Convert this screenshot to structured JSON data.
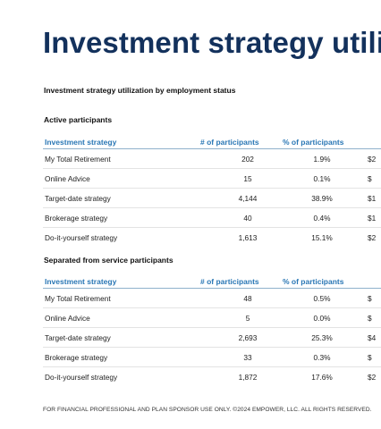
{
  "title": "Investment strategy utiliz",
  "subtitle": "Investment strategy utilization by employment status",
  "headers": {
    "strategy": "Investment strategy",
    "participants": "# of participants",
    "percent": "% of participants"
  },
  "active": {
    "title": "Active participants",
    "rows": [
      {
        "name": "My Total Retirement",
        "participants": "202",
        "percent": "1.9%",
        "value": "$2"
      },
      {
        "name": "Online Advice",
        "participants": "15",
        "percent": "0.1%",
        "value": "$"
      },
      {
        "name": "Target-date strategy",
        "participants": "4,144",
        "percent": "38.9%",
        "value": "$1"
      },
      {
        "name": "Brokerage strategy",
        "participants": "40",
        "percent": "0.4%",
        "value": "$1"
      },
      {
        "name": "Do-it-yourself strategy",
        "participants": "1,613",
        "percent": "15.1%",
        "value": "$2"
      }
    ]
  },
  "separated": {
    "title": "Separated from service participants",
    "rows": [
      {
        "name": "My Total Retirement",
        "participants": "48",
        "percent": "0.5%",
        "value": "$"
      },
      {
        "name": "Online Advice",
        "participants": "5",
        "percent": "0.0%",
        "value": "$"
      },
      {
        "name": "Target-date strategy",
        "participants": "2,693",
        "percent": "25.3%",
        "value": "$4"
      },
      {
        "name": "Brokerage strategy",
        "participants": "33",
        "percent": "0.3%",
        "value": "$"
      },
      {
        "name": "Do-it-yourself strategy",
        "participants": "1,872",
        "percent": "17.6%",
        "value": "$2"
      }
    ]
  },
  "footer": "FOR FINANCIAL PROFESSIONAL AND PLAN SPONSOR USE ONLY. ©2024 EMPOWER, LLC. ALL RIGHTS RESERVED."
}
